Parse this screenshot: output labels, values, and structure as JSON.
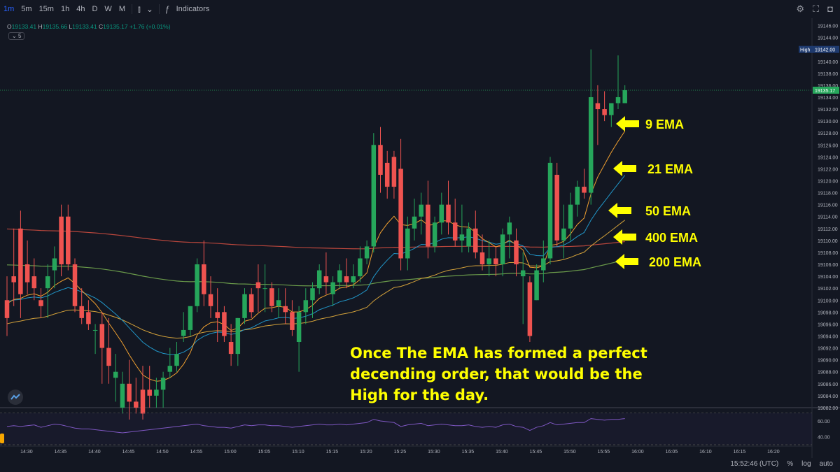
{
  "toolbar": {
    "timeframes": [
      "1m",
      "5m",
      "15m",
      "1h",
      "4h",
      "D",
      "W",
      "M"
    ],
    "indicators_label": "Indicators"
  },
  "ohlc": {
    "o": "19133.41",
    "h": "19135.66",
    "l": "19133.41",
    "c": "19135.17",
    "change": "+1.76 (+0.01%)"
  },
  "badge": "5",
  "annotation": "Once The EMA has formed a perfect decending order, that would be the High for the day.",
  "ema_labels": [
    "9 EMA",
    "21 EMA",
    "50 EMA",
    "400 EMA",
    "200 EMA"
  ],
  "price_axis": {
    "ticks": [
      "19146.00",
      "19144.00",
      "19142.00",
      "19140.00",
      "19138.00",
      "19136.00",
      "19134.00",
      "19132.00",
      "19130.00",
      "19128.00",
      "19126.00",
      "19124.00",
      "19122.00",
      "19120.00",
      "19118.00",
      "19116.00",
      "19114.00",
      "19112.00",
      "19110.00",
      "19108.00",
      "19106.00",
      "19104.00",
      "19102.00",
      "19100.00",
      "19098.00",
      "19096.00",
      "19094.00",
      "19092.00",
      "19090.00",
      "19088.00",
      "19086.00",
      "19084.00",
      "19082.00"
    ],
    "high_label": "High",
    "high_value": "19142.00",
    "last_price": "19135.17"
  },
  "rsi_axis": [
    "60.00",
    "40.00"
  ],
  "time_axis": [
    "14:30",
    "14:35",
    "14:40",
    "14:45",
    "14:50",
    "14:55",
    "15:00",
    "15:05",
    "15:10",
    "15:15",
    "15:20",
    "15:25",
    "15:30",
    "15:35",
    "15:40",
    "15:45",
    "15:50",
    "15:55",
    "16:00",
    "16:05",
    "16:10",
    "16:15",
    "16:20"
  ],
  "status": {
    "clock": "15:52:46 (UTC)",
    "percent": "%",
    "log": "log",
    "auto": "auto"
  },
  "colors": {
    "up": "#26a65b",
    "down": "#ef5350",
    "ema9": "#f0a030",
    "ema21": "#2196c8",
    "ema50": "#d4a23a",
    "ema400": "#b8463c",
    "ema200": "#6a9a4a",
    "rsi": "#7e57c2",
    "annotation": "#ffff00"
  },
  "chart_data": {
    "type": "candlestick",
    "x_start": "14:27",
    "x_interval": "1m",
    "candles": [
      [
        19100,
        19104,
        19094,
        19097
      ],
      [
        19104,
        19112,
        19099,
        19103
      ],
      [
        19112,
        19115,
        19097,
        19101
      ],
      [
        19106,
        19110,
        19101,
        19103
      ],
      [
        19104,
        19107,
        19100,
        19102
      ],
      [
        19100,
        19102,
        19097,
        19099
      ],
      [
        19102,
        19106,
        19097,
        19104
      ],
      [
        19105,
        19109,
        19102,
        19107
      ],
      [
        19114,
        19116,
        19104,
        19106
      ],
      [
        19114,
        19116,
        19105,
        19106
      ],
      [
        19106,
        19107,
        19098,
        19099
      ],
      [
        19099,
        19102,
        19096,
        19097
      ],
      [
        19098,
        19100,
        19095,
        19096
      ],
      [
        19095,
        19096,
        19091,
        19095
      ],
      [
        19096,
        19098,
        19086,
        19092
      ],
      [
        19092,
        19097,
        19086,
        19089
      ],
      [
        19087,
        19091,
        19083,
        19088
      ],
      [
        19082,
        19088,
        19081,
        19086
      ],
      [
        19086,
        19090,
        19080,
        19083
      ],
      [
        19083,
        19087,
        19081,
        19082
      ],
      [
        19085,
        19089,
        19080,
        19081
      ],
      [
        19085,
        19089,
        19082,
        19084
      ],
      [
        19084,
        19087,
        19082,
        19085
      ],
      [
        19085,
        19088,
        19082,
        19087
      ],
      [
        19088,
        19092,
        19087,
        19089
      ],
      [
        19089,
        19093,
        19088,
        19091
      ],
      [
        19094,
        19098,
        19093,
        19095
      ],
      [
        19095,
        19099,
        19094,
        19099
      ],
      [
        19099,
        19107,
        19098,
        19106
      ],
      [
        19106,
        19110,
        19099,
        19101
      ],
      [
        19101,
        19104,
        19097,
        19099
      ],
      [
        19098,
        19102,
        19093,
        19097
      ],
      [
        19098,
        19099,
        19093,
        19094
      ],
      [
        19093,
        19096,
        19089,
        19091
      ],
      [
        19091,
        19097,
        19089,
        19097
      ],
      [
        19097,
        19102,
        19096,
        19101
      ],
      [
        19101,
        19102,
        19097,
        19098
      ],
      [
        19103,
        19106,
        19098,
        19102
      ],
      [
        19102,
        19106,
        19098,
        19102
      ],
      [
        19102,
        19103,
        19098,
        19099
      ],
      [
        19099,
        19102,
        19097,
        19100
      ],
      [
        19099,
        19102,
        19096,
        19098
      ],
      [
        19098,
        19100,
        19094,
        19095
      ],
      [
        19093,
        19099,
        19088,
        19098
      ],
      [
        19098,
        19102,
        19096,
        19100
      ],
      [
        19100,
        19103,
        19097,
        19102
      ],
      [
        19102,
        19106,
        19101,
        19105
      ],
      [
        19104,
        19108,
        19101,
        19103
      ],
      [
        19101,
        19104,
        19099,
        19103
      ],
      [
        19103,
        19106,
        19102,
        19105
      ],
      [
        19104,
        19107,
        19102,
        19103
      ],
      [
        19103,
        19106,
        19102,
        19104
      ],
      [
        19104,
        19109,
        19103,
        19107
      ],
      [
        19107,
        19110,
        19106,
        19109
      ],
      [
        19109,
        19128,
        19108,
        19126
      ],
      [
        19126,
        19129,
        19118,
        19121
      ],
      [
        19123,
        19125,
        19117,
        19119
      ],
      [
        19124,
        19125,
        19117,
        19119
      ],
      [
        19122,
        19127,
        19105,
        19107
      ],
      [
        19107,
        19114,
        19105,
        19112
      ],
      [
        19112,
        19117,
        19110,
        19114
      ],
      [
        19114,
        19118,
        19111,
        19116
      ],
      [
        19116,
        19120,
        19107,
        19109
      ],
      [
        19109,
        19114,
        19108,
        19113
      ],
      [
        19113,
        19118,
        19111,
        19116
      ],
      [
        19116,
        19120,
        19111,
        19113
      ],
      [
        19113,
        19117,
        19109,
        19110
      ],
      [
        19110,
        19116,
        19108,
        19111
      ],
      [
        19109,
        19113,
        19108,
        19112
      ],
      [
        19112,
        19115,
        19107,
        19108
      ],
      [
        19108,
        19111,
        19105,
        19106
      ],
      [
        19106,
        19110,
        19104,
        19107
      ],
      [
        19107,
        19109,
        19104,
        19106
      ],
      [
        19106,
        19112,
        19104,
        19111
      ],
      [
        19111,
        19114,
        19107,
        19113
      ],
      [
        19110,
        19112,
        19104,
        19106
      ],
      [
        19104,
        19108,
        19096,
        19105
      ],
      [
        19103,
        19104,
        19093,
        19094
      ],
      [
        19100,
        19106,
        19100,
        19105
      ],
      [
        19105,
        19110,
        19103,
        19107
      ],
      [
        19107,
        19124,
        19106,
        19123
      ],
      [
        19121,
        19123,
        19109,
        19110
      ],
      [
        19110,
        19116,
        19107,
        19112
      ],
      [
        19112,
        19118,
        19110,
        19116
      ],
      [
        19116,
        19120,
        19114,
        19119
      ],
      [
        19119,
        19122,
        19117,
        19118
      ],
      [
        19118,
        19142,
        19116,
        19134
      ],
      [
        19133,
        19136,
        19126,
        19132
      ],
      [
        19132,
        19135,
        19130,
        19131
      ],
      [
        19131,
        19133,
        19129,
        19133
      ],
      [
        19133,
        19141,
        19132,
        19134
      ],
      [
        19133,
        19136,
        19133,
        19135.17
      ]
    ],
    "ema9": [
      19100,
      19101,
      19101,
      19102,
      19102,
      19101,
      19102,
      19103,
      19104,
      19104,
      19103,
      19102,
      19101,
      19100,
      19098,
      19097,
      19095,
      19093,
      19091,
      19089,
      19088,
      19087,
      19087,
      19087,
      19087,
      19088,
      19089,
      19091,
      19094,
      19096,
      19097,
      19097,
      19097,
      19096,
      19096,
      19097,
      19097,
      19098,
      19099,
      19099,
      19099,
      19099,
      19098,
      19098,
      19098,
      19099,
      19100,
      19101,
      19101,
      19102,
      19102,
      19103,
      19104,
      19105,
      19109,
      19112,
      19113,
      19114,
      19113,
      19113,
      19113,
      19114,
      19113,
      19113,
      19114,
      19114,
      19113,
      19113,
      19112,
      19111,
      19110,
      19109,
      19108,
      19108,
      19109,
      19108,
      19108,
      19106,
      19106,
      19106,
      19108,
      19109,
      19110,
      19111,
      19113,
      19114,
      19118,
      19121,
      19123,
      19125,
      19127,
      19129
    ]
  },
  "rsi_data": [
    53,
    54,
    53,
    54,
    55,
    52,
    54,
    56,
    55,
    53,
    51,
    50,
    50,
    49,
    48,
    47,
    46,
    45,
    46,
    47,
    48,
    49,
    50,
    51,
    52,
    53,
    54,
    55,
    56,
    54,
    53,
    52,
    52,
    51,
    53,
    55,
    54,
    55,
    55,
    54,
    54,
    53,
    52,
    53,
    54,
    55,
    56,
    55,
    55,
    56,
    55,
    56,
    57,
    58,
    62,
    60,
    59,
    58,
    53,
    55,
    56,
    57,
    54,
    55,
    56,
    55,
    54,
    54,
    55,
    53,
    52,
    53,
    52,
    55,
    56,
    53,
    52,
    48,
    52,
    54,
    58,
    55,
    56,
    57,
    58,
    58,
    63,
    62,
    61,
    62,
    62,
    63
  ]
}
